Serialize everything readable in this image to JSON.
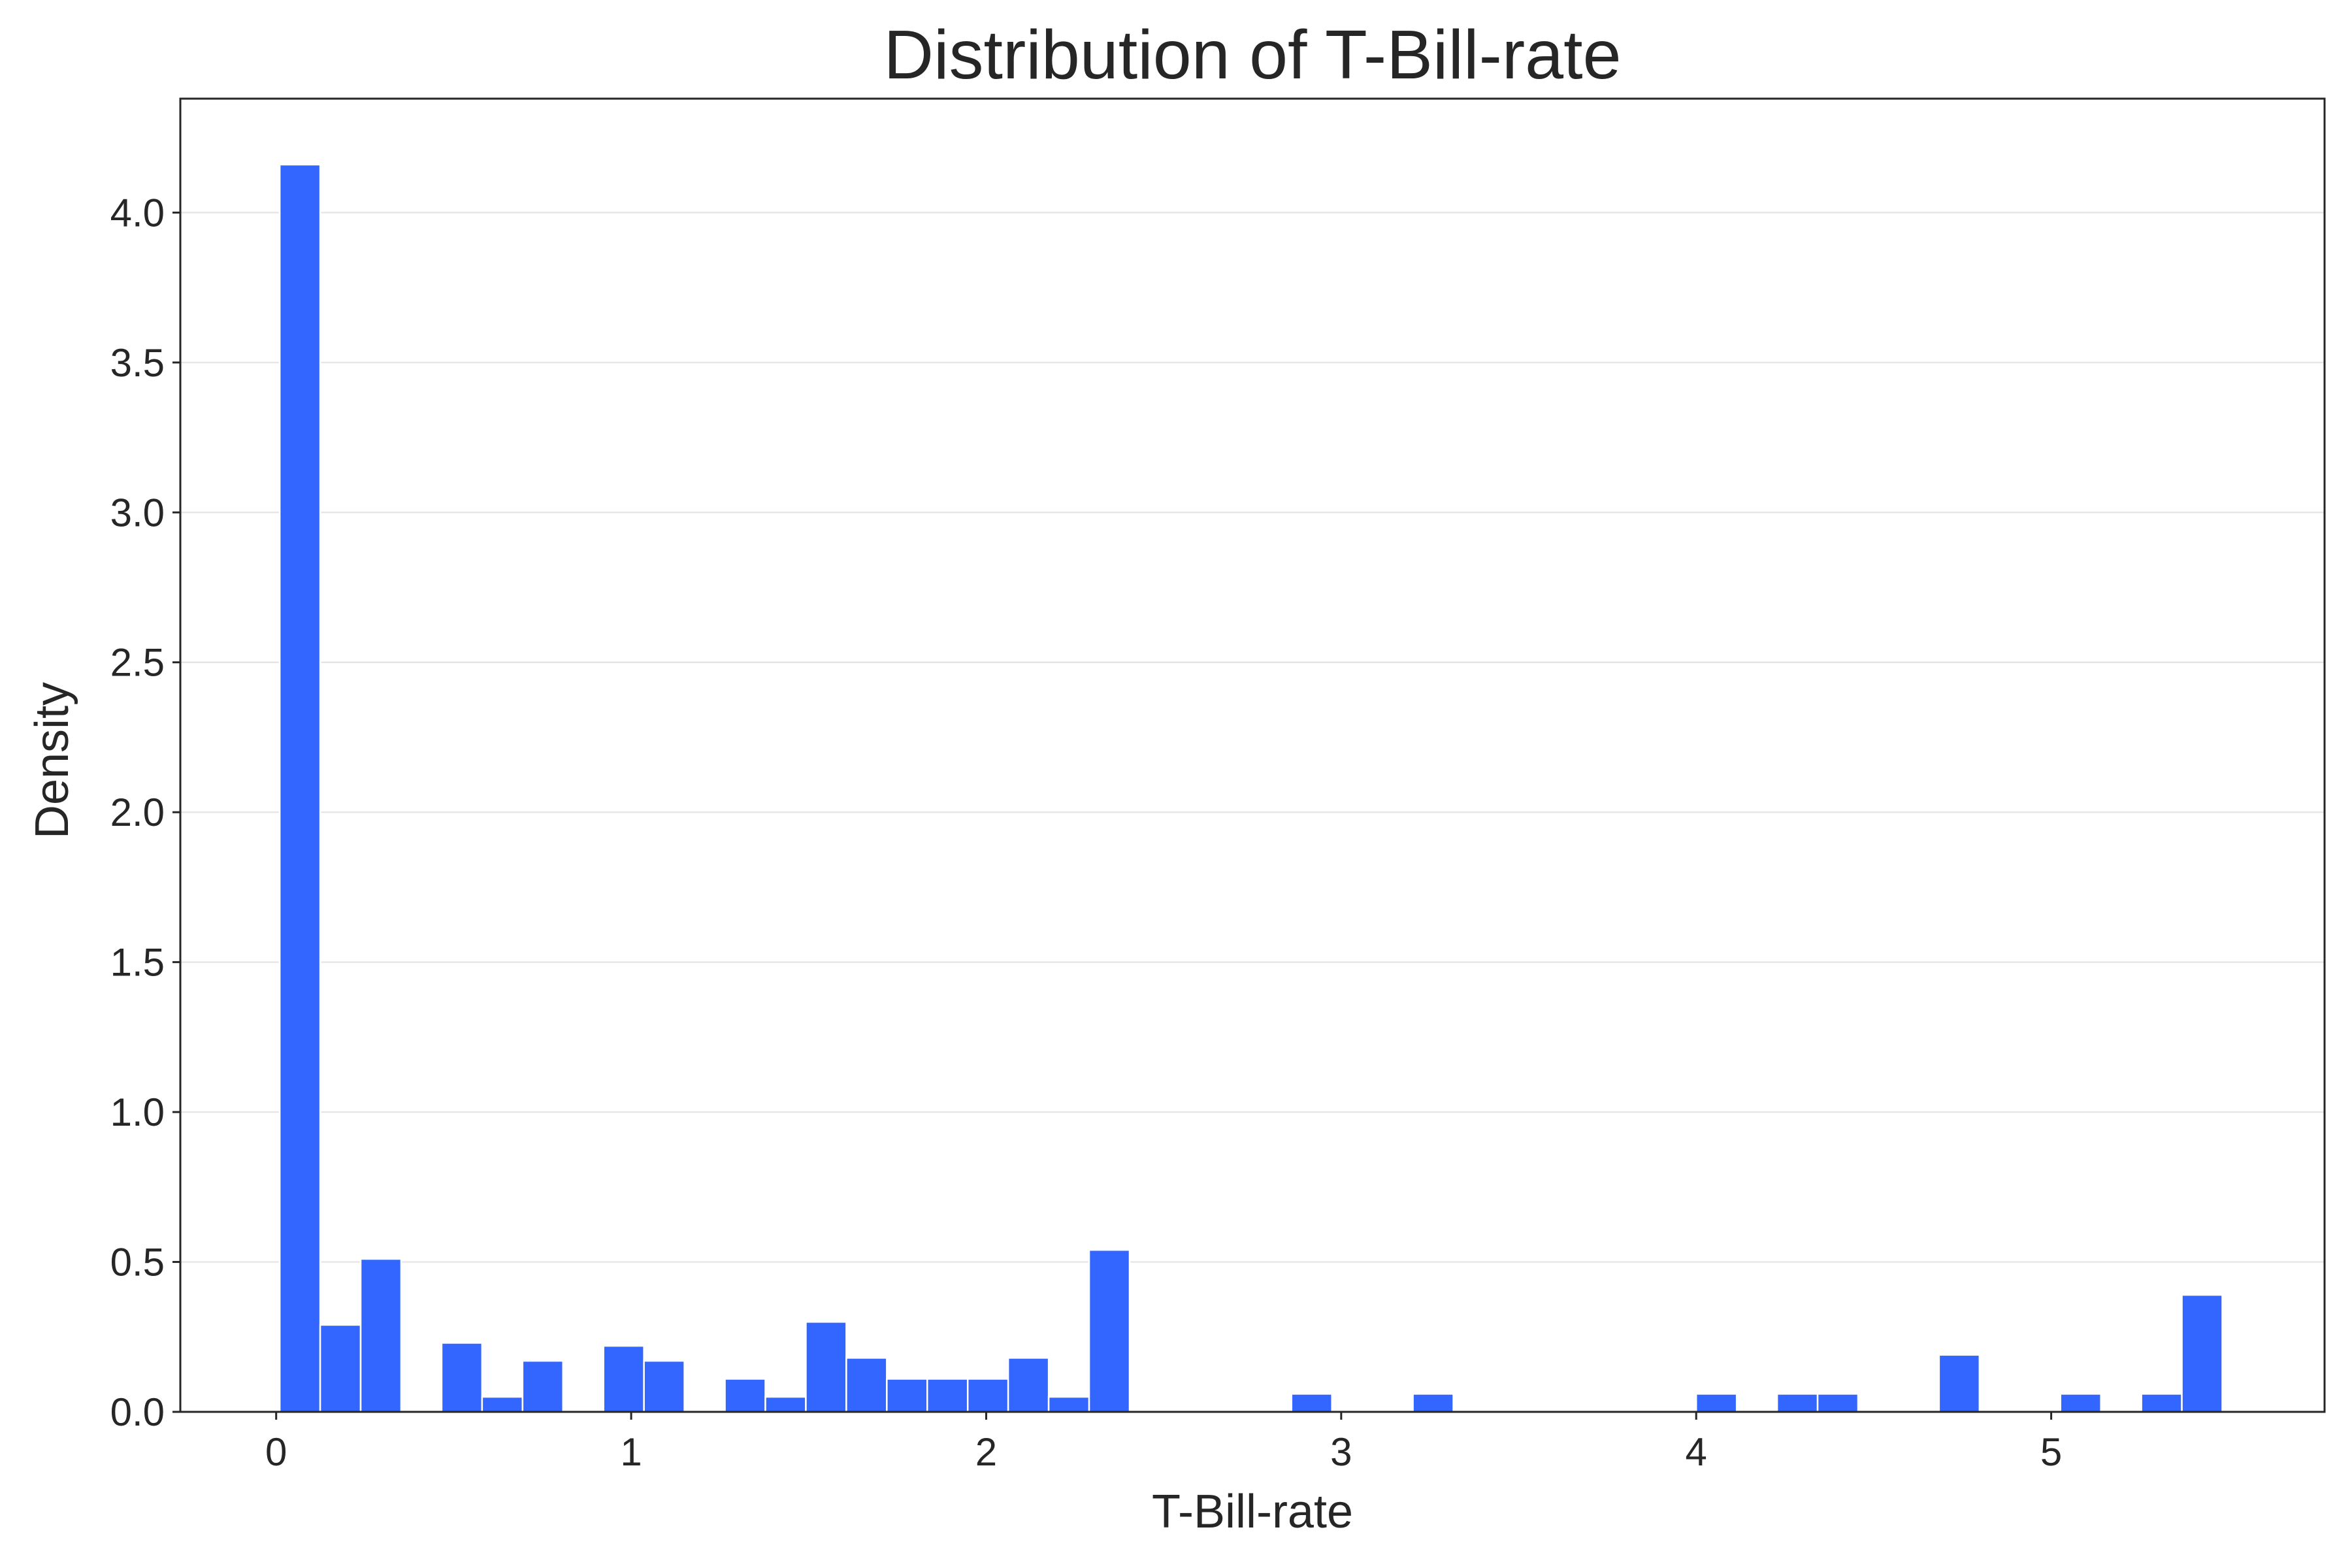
{
  "chart_data": {
    "type": "bar",
    "subtype": "histogram",
    "title": "Distribution of T-Bill-rate",
    "xlabel": "T-Bill-rate",
    "ylabel": "Density",
    "xlim": [
      -0.27,
      5.77
    ],
    "ylim": [
      0,
      4.38
    ],
    "xticks": [
      0,
      1,
      2,
      3,
      4,
      5
    ],
    "yticks": [
      0.0,
      0.5,
      1.0,
      1.5,
      2.0,
      2.5,
      3.0,
      3.5,
      4.0
    ],
    "ytick_labels": [
      "0.0",
      "0.5",
      "1.0",
      "1.5",
      "2.0",
      "2.5",
      "3.0",
      "3.5",
      "4.0"
    ],
    "grid": "horizontal",
    "bar_color": "#3366ff",
    "bin_width": 0.114,
    "bins": [
      {
        "x0": 0.01,
        "value": 4.16
      },
      {
        "x0": 0.124,
        "value": 0.29
      },
      {
        "x0": 0.238,
        "value": 0.51
      },
      {
        "x0": 0.466,
        "value": 0.23
      },
      {
        "x0": 0.58,
        "value": 0.05
      },
      {
        "x0": 0.694,
        "value": 0.17
      },
      {
        "x0": 0.922,
        "value": 0.22
      },
      {
        "x0": 1.036,
        "value": 0.17
      },
      {
        "x0": 1.264,
        "value": 0.11
      },
      {
        "x0": 1.378,
        "value": 0.05
      },
      {
        "x0": 1.492,
        "value": 0.3
      },
      {
        "x0": 1.606,
        "value": 0.18
      },
      {
        "x0": 1.72,
        "value": 0.11
      },
      {
        "x0": 1.834,
        "value": 0.11
      },
      {
        "x0": 1.948,
        "value": 0.11
      },
      {
        "x0": 2.062,
        "value": 0.18
      },
      {
        "x0": 2.176,
        "value": 0.05
      },
      {
        "x0": 2.29,
        "value": 0.54
      },
      {
        "x0": 2.86,
        "value": 0.06
      },
      {
        "x0": 3.202,
        "value": 0.06
      },
      {
        "x0": 4.0,
        "value": 0.06
      },
      {
        "x0": 4.228,
        "value": 0.06
      },
      {
        "x0": 4.342,
        "value": 0.06
      },
      {
        "x0": 4.684,
        "value": 0.19
      },
      {
        "x0": 5.026,
        "value": 0.06
      },
      {
        "x0": 5.254,
        "value": 0.06
      },
      {
        "x0": 5.368,
        "value": 0.39
      }
    ]
  }
}
